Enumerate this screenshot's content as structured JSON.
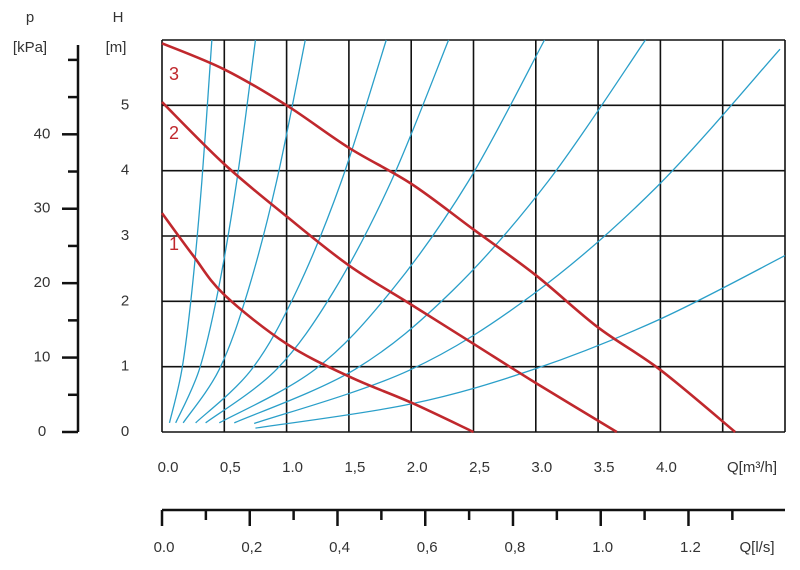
{
  "chart_data": {
    "type": "line",
    "x_label": "Q[m³/h]",
    "y_label": "H",
    "y_unit": "[m]",
    "xlim": [
      0,
      5
    ],
    "ylim": [
      0,
      6
    ],
    "xticks": [
      {
        "value": 0,
        "label": "0.0"
      },
      {
        "value": 0.5,
        "label": "0,5"
      },
      {
        "value": 1,
        "label": "1.0"
      },
      {
        "value": 1.5,
        "label": "1,5"
      },
      {
        "value": 2,
        "label": "2.0"
      },
      {
        "value": 2.5,
        "label": "2,5"
      },
      {
        "value": 3,
        "label": "3.0"
      },
      {
        "value": 3.5,
        "label": "3.5"
      },
      {
        "value": 4,
        "label": "4.0"
      }
    ],
    "yticks": [
      0,
      1,
      2,
      3,
      4,
      5
    ],
    "xgrid": [
      0,
      0.5,
      1,
      1.5,
      2,
      2.5,
      3,
      3.5,
      4,
      4.5,
      5
    ],
    "ygrid": [
      0,
      1,
      2,
      3,
      4,
      5,
      6
    ],
    "series": [
      {
        "name": "1",
        "color": "#c0282d",
        "x": [
          0,
          0.25,
          0.5,
          1,
          1.5,
          2,
          2.5
        ],
        "values": [
          3.35,
          2.7,
          2.1,
          1.35,
          0.85,
          0.45,
          0
        ]
      },
      {
        "name": "2",
        "color": "#c0282d",
        "x": [
          0,
          0.5,
          1,
          1.5,
          2,
          2.5,
          3,
          3.65
        ],
        "values": [
          5.05,
          4.1,
          3.3,
          2.55,
          1.95,
          1.35,
          0.75,
          0
        ]
      },
      {
        "name": "3",
        "color": "#c0282d",
        "x": [
          0,
          0.5,
          1,
          1.5,
          2,
          2.5,
          3,
          3.5,
          4,
          4.6
        ],
        "values": [
          5.95,
          5.55,
          5.0,
          4.35,
          3.8,
          3.1,
          2.4,
          1.6,
          0.95,
          0
        ]
      }
    ],
    "system_curves": [
      {
        "color": "#2a9fc9",
        "x": [
          0.06,
          0.16,
          0.24,
          0.32,
          0.4
        ],
        "values": [
          0.14,
          0.96,
          2.16,
          3.84,
          6
        ]
      },
      {
        "color": "#2a9fc9",
        "x": [
          0.11,
          0.3,
          0.45,
          0.6,
          0.75
        ],
        "values": [
          0.14,
          0.96,
          2.16,
          3.84,
          6
        ]
      },
      {
        "color": "#2a9fc9",
        "x": [
          0.17,
          0.46,
          0.69,
          0.92,
          1.15
        ],
        "values": [
          0.14,
          0.96,
          2.16,
          3.84,
          6
        ]
      },
      {
        "color": "#2a9fc9",
        "x": [
          0.27,
          0.72,
          1.08,
          1.44,
          1.8
        ],
        "values": [
          0.14,
          0.96,
          2.16,
          3.84,
          6
        ]
      },
      {
        "color": "#2a9fc9",
        "x": [
          0.35,
          0.92,
          1.38,
          1.84,
          2.3
        ],
        "values": [
          0.14,
          0.96,
          2.16,
          3.84,
          6
        ]
      },
      {
        "color": "#2a9fc9",
        "x": [
          0.46,
          1.23,
          1.84,
          2.46,
          3.07
        ],
        "values": [
          0.14,
          0.96,
          2.16,
          3.84,
          6
        ]
      },
      {
        "color": "#2a9fc9",
        "x": [
          0.58,
          1.55,
          2.33,
          3.1,
          3.88
        ],
        "values": [
          0.14,
          0.96,
          2.16,
          3.84,
          6
        ]
      },
      {
        "color": "#2a9fc9",
        "x": [
          0.74,
          1.98,
          2.98,
          3.97,
          4.96
        ],
        "values": [
          0.13,
          0.94,
          2.11,
          3.75,
          5.86
        ]
      },
      {
        "color": "#2a9fc9",
        "x": [
          0.75,
          2,
          3,
          4,
          5
        ],
        "values": [
          0.06,
          0.43,
          0.97,
          1.73,
          2.7
        ]
      }
    ],
    "p_axis": {
      "label": "p",
      "unit": "[kPa]",
      "lim": [
        0,
        52
      ],
      "ticks": [
        0,
        10,
        20,
        30,
        40
      ],
      "minor_ticks": [
        5,
        15,
        25,
        35,
        45,
        50
      ]
    },
    "flow_axis": {
      "label": "Q[l/s]",
      "lim": [
        0,
        1.42
      ],
      "ticks": [
        {
          "value": 0,
          "label": "0.0"
        },
        {
          "value": 0.2,
          "label": "0,2"
        },
        {
          "value": 0.4,
          "label": "0,4"
        },
        {
          "value": 0.6,
          "label": "0,6"
        },
        {
          "value": 0.8,
          "label": "0,8"
        },
        {
          "value": 1.0,
          "label": "1.0"
        },
        {
          "value": 1.2,
          "label": "1.2"
        }
      ],
      "minor_ticks": [
        0.1,
        0.3,
        0.5,
        0.7,
        0.9,
        1.1,
        1.3
      ]
    }
  }
}
